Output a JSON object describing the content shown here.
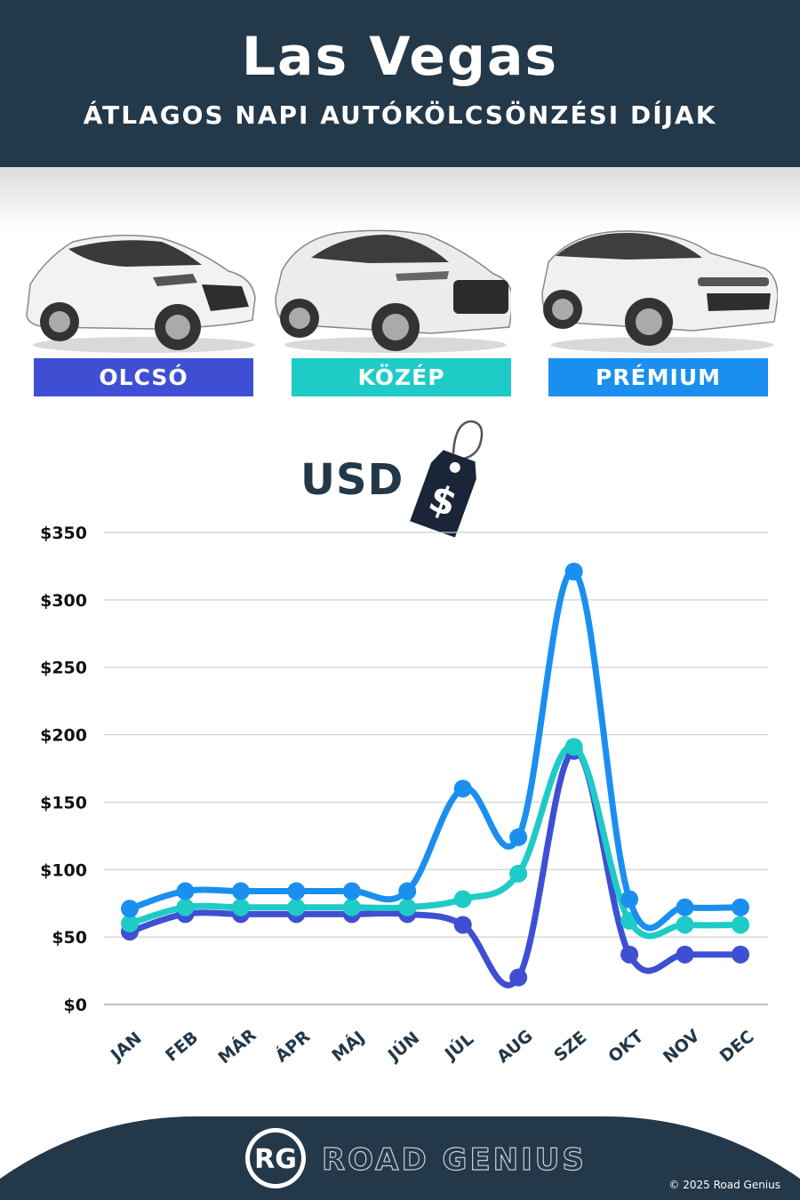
{
  "header": {
    "title": "Las Vegas",
    "subtitle": "ÁTLAGOS NAPI AUTÓKÖLCSÖNZÉSI DÍJAK"
  },
  "categories": [
    {
      "label": "OLCSÓ",
      "color": "#3f4fd3"
    },
    {
      "label": "KÖZÉP",
      "color": "#1ecbc6"
    },
    {
      "label": "PRÉMIUM",
      "color": "#1a8ff0"
    }
  ],
  "currency_label": "USD",
  "price_tag_symbol": "$",
  "chart_data": {
    "type": "line",
    "categories": [
      "JAN",
      "FEB",
      "MÁR",
      "ÁPR",
      "MÁJ",
      "JÚN",
      "JÚL",
      "AUG",
      "SZE",
      "OKT",
      "NOV",
      "DEC"
    ],
    "y_ticks": [
      "$0",
      "$50",
      "$100",
      "$150",
      "$200",
      "$250",
      "$300",
      "$350"
    ],
    "ylim": [
      0,
      350
    ],
    "grid": true,
    "series": [
      {
        "name": "OLCSÓ",
        "color": "#3f4fd3",
        "values": [
          54,
          67,
          67,
          67,
          67,
          67,
          59,
          20,
          188,
          37,
          37,
          37
        ]
      },
      {
        "name": "KÖZÉP",
        "color": "#1ecbc6",
        "values": [
          60,
          72,
          72,
          72,
          72,
          72,
          78,
          97,
          191,
          62,
          59,
          59
        ]
      },
      {
        "name": "PRÉMIUM",
        "color": "#1a8ff0",
        "values": [
          71,
          84,
          84,
          84,
          84,
          84,
          160,
          124,
          321,
          78,
          72,
          72
        ]
      }
    ]
  },
  "footer": {
    "logo_text": "RG",
    "brand": "ROAD GENIUS",
    "copyright": "© 2025 Road Genius"
  }
}
